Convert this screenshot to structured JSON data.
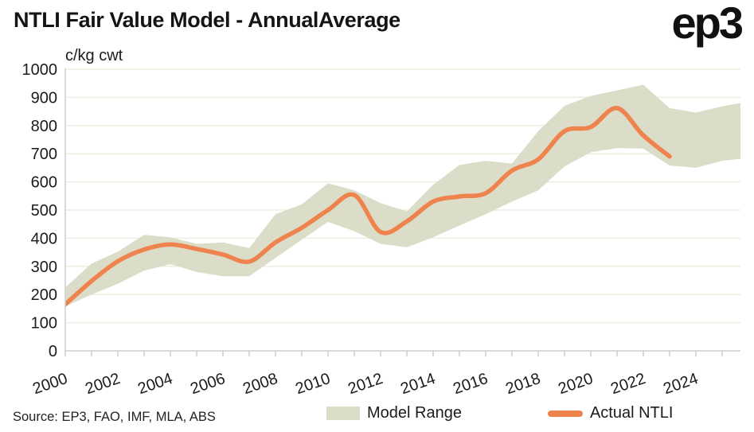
{
  "header": {
    "title": "NTLI Fair Value Model - AnnualAverage",
    "logo": "ep3"
  },
  "chart_data": {
    "type": "area+line",
    "title": "NTLI Fair Value Model - AnnualAverage",
    "ylabel": "c/kg cwt",
    "ylim": [
      0,
      1000
    ],
    "y_ticks": [
      0,
      100,
      200,
      300,
      400,
      500,
      600,
      700,
      800,
      900,
      1000
    ],
    "x_ticks": [
      2000,
      2001,
      2002,
      2003,
      2004,
      2005,
      2006,
      2007,
      2008,
      2009,
      2010,
      2011,
      2012,
      2013,
      2014,
      2015,
      2016,
      2017,
      2018,
      2019,
      2020,
      2021,
      2022,
      2023,
      2024,
      2025
    ],
    "x_labeled_ticks": [
      2000,
      2002,
      2004,
      2006,
      2008,
      2010,
      2012,
      2014,
      2016,
      2018,
      2020,
      2022,
      2024
    ],
    "grid": true,
    "legend_position": "bottom",
    "colors": {
      "band": "#DBDDC8",
      "line": "#EF834D",
      "gridline": "#EDEEE0",
      "axis": "#CFCFCF",
      "text": "#1b1b1b"
    },
    "series": [
      {
        "name": "Model Range",
        "type": "band",
        "color": "#DBDDC8",
        "x": [
          2000,
          2001,
          2002,
          2003,
          2004,
          2005,
          2006,
          2007,
          2008,
          2009,
          2010,
          2011,
          2012,
          2013,
          2014,
          2015,
          2016,
          2017,
          2018,
          2019,
          2020,
          2021,
          2022,
          2023,
          2024,
          2025,
          2026
        ],
        "lower": [
          158,
          200,
          238,
          285,
          308,
          280,
          265,
          265,
          330,
          395,
          458,
          425,
          380,
          368,
          403,
          445,
          485,
          530,
          570,
          655,
          705,
          720,
          718,
          658,
          650,
          675,
          685
        ],
        "upper": [
          225,
          310,
          352,
          412,
          403,
          380,
          385,
          365,
          485,
          520,
          595,
          570,
          525,
          495,
          590,
          660,
          675,
          665,
          780,
          870,
          905,
          925,
          945,
          862,
          846,
          868,
          885
        ]
      },
      {
        "name": "Actual NTLI",
        "type": "line",
        "color": "#EF834D",
        "x": [
          2000,
          2001,
          2002,
          2003,
          2004,
          2005,
          2006,
          2007,
          2008,
          2009,
          2010,
          2011,
          2012,
          2013,
          2014,
          2015,
          2016,
          2017,
          2018,
          2019,
          2020,
          2021,
          2022,
          2023
        ],
        "values": [
          165,
          248,
          318,
          360,
          378,
          362,
          342,
          317,
          385,
          437,
          500,
          553,
          422,
          460,
          530,
          548,
          560,
          640,
          680,
          780,
          795,
          862,
          765,
          690
        ]
      }
    ]
  },
  "footer": {
    "source": "Source: EP3, FAO, IMF, MLA, ABS"
  }
}
